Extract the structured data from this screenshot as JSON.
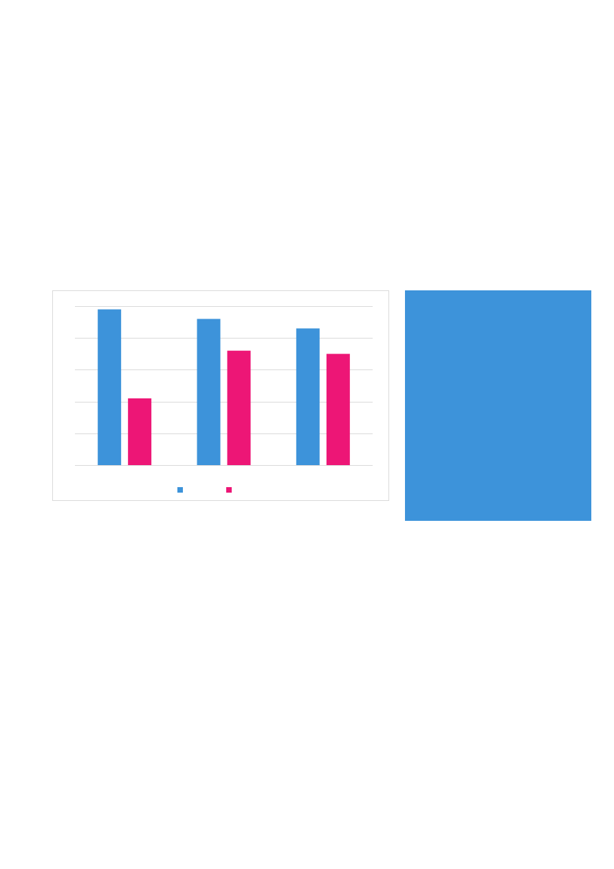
{
  "colors": {
    "series_1": "#3d93da",
    "series_2": "#ed1676",
    "panel": "#3d93da",
    "grid": "#d9d9d9"
  },
  "chart_data": {
    "type": "bar",
    "categories": [
      "",
      "",
      ""
    ],
    "series": [
      {
        "values": [
          4.9,
          4.6,
          4.3
        ]
      },
      {
        "values": [
          2.1,
          3.6,
          3.5
        ]
      }
    ],
    "ylim": [
      0,
      5
    ],
    "grid": true,
    "legend": "bottom",
    "title": "",
    "xlabel": "",
    "ylabel": ""
  }
}
